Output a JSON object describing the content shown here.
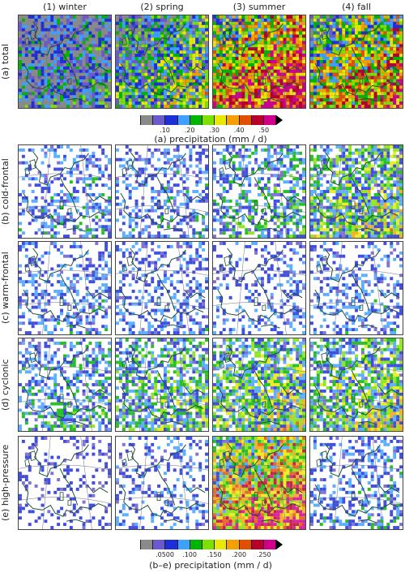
{
  "columns": [
    "(1) winter",
    "(2) spring",
    "(3) summer",
    "(4) fall"
  ],
  "rows": [
    {
      "label": "(a) total",
      "key": "total"
    },
    {
      "label": "(b) cold-frontal",
      "key": "cold"
    },
    {
      "label": "(c) warm-frontal",
      "key": "warm"
    },
    {
      "label": "(d) cyclonic",
      "key": "cyclonic"
    },
    {
      "label": "(e) high-pressure",
      "key": "high"
    }
  ],
  "colorbar_a": {
    "label": "(a) precipitation (mm / d)",
    "ticks": [
      ".10",
      ".20",
      ".30",
      ".40",
      ".50"
    ],
    "colors": [
      "#8a8a8a",
      "#6a5acd",
      "#1e2fd8",
      "#3fa0ff",
      "#00b400",
      "#7ee000",
      "#e8e800",
      "#f5a000",
      "#e05000",
      "#b8002a",
      "#d0008c"
    ]
  },
  "colorbar_be": {
    "label": "(b–e) precipitation (mm / d)",
    "ticks": [
      ".0500",
      ".100",
      ".150",
      ".200",
      ".250"
    ],
    "colors": [
      "#8a8a8a",
      "#6a5acd",
      "#1e2fd8",
      "#3fa0ff",
      "#00b400",
      "#7ee000",
      "#e8e800",
      "#f5a000",
      "#e05000",
      "#b8002a",
      "#d0008c"
    ]
  },
  "panel_intensity": {
    "total": [
      0.25,
      0.45,
      0.85,
      0.7
    ],
    "cold": [
      0.15,
      0.15,
      0.25,
      0.45
    ],
    "warm": [
      0.12,
      0.1,
      0.08,
      0.12
    ],
    "cyclonic": [
      0.22,
      0.35,
      0.45,
      0.45
    ],
    "high": [
      0.02,
      0.1,
      0.8,
      0.15
    ]
  }
}
